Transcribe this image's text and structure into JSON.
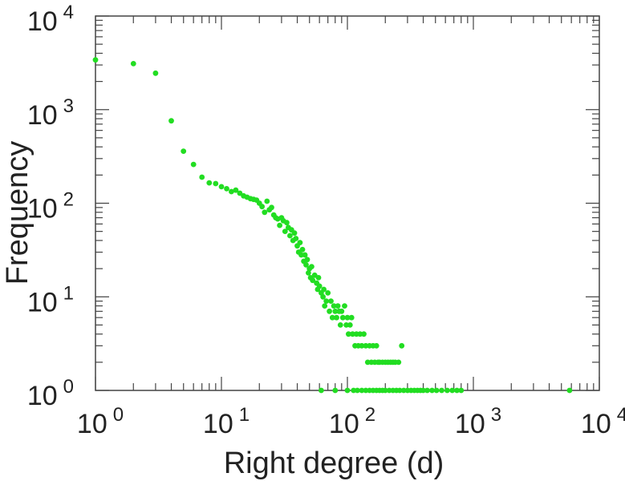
{
  "chart_data": {
    "type": "scatter",
    "title": "",
    "xlabel": "Right degree (d)",
    "ylabel": "Frequency",
    "xscale": "log",
    "yscale": "log",
    "xlim": [
      1,
      10000
    ],
    "ylim": [
      1,
      10000
    ],
    "grid": false,
    "legend": "none",
    "x_ticks": [
      {
        "base": "10",
        "exp": "0"
      },
      {
        "base": "10",
        "exp": "1"
      },
      {
        "base": "10",
        "exp": "2"
      },
      {
        "base": "10",
        "exp": "3"
      },
      {
        "base": "10",
        "exp": "4"
      }
    ],
    "y_ticks": [
      {
        "base": "10",
        "exp": "0"
      },
      {
        "base": "10",
        "exp": "1"
      },
      {
        "base": "10",
        "exp": "2"
      },
      {
        "base": "10",
        "exp": "3"
      },
      {
        "base": "10",
        "exp": "4"
      }
    ],
    "marker_color": "#22dd22",
    "axis_color": "#444444",
    "series": [
      {
        "points": [
          [
            1,
            3400
          ],
          [
            2,
            3100
          ],
          [
            3,
            2450
          ],
          [
            4,
            760
          ],
          [
            5,
            360
          ],
          [
            6,
            260
          ],
          [
            7,
            190
          ],
          [
            8,
            165
          ],
          [
            9,
            162
          ],
          [
            10,
            150
          ],
          [
            11,
            143
          ],
          [
            12,
            133
          ],
          [
            13,
            138
          ],
          [
            14,
            128
          ],
          [
            15,
            120
          ],
          [
            16,
            116
          ],
          [
            17,
            112
          ],
          [
            18,
            110
          ],
          [
            19,
            108
          ],
          [
            20,
            100
          ],
          [
            21,
            92
          ],
          [
            22,
            80
          ],
          [
            23,
            105
          ],
          [
            24,
            85
          ],
          [
            25,
            90
          ],
          [
            26,
            75
          ],
          [
            27,
            70
          ],
          [
            28,
            68
          ],
          [
            29,
            58
          ],
          [
            30,
            70
          ],
          [
            31,
            65
          ],
          [
            32,
            50
          ],
          [
            33,
            62
          ],
          [
            34,
            55
          ],
          [
            35,
            45
          ],
          [
            36,
            52
          ],
          [
            37,
            40
          ],
          [
            38,
            48
          ],
          [
            39,
            42
          ],
          [
            40,
            35
          ],
          [
            41,
            30
          ],
          [
            42,
            38
          ],
          [
            43,
            28
          ],
          [
            44,
            32
          ],
          [
            45,
            24
          ],
          [
            46,
            28
          ],
          [
            47,
            22
          ],
          [
            48,
            25
          ],
          [
            49,
            18
          ],
          [
            50,
            20
          ],
          [
            51,
            16
          ],
          [
            52,
            21
          ],
          [
            53,
            15
          ],
          [
            55,
            17
          ],
          [
            57,
            14
          ],
          [
            58,
            12
          ],
          [
            59,
            16
          ],
          [
            60,
            13
          ],
          [
            62,
            11
          ],
          [
            64,
            10
          ],
          [
            65,
            12
          ],
          [
            66,
            8
          ],
          [
            68,
            9
          ],
          [
            70,
            11
          ],
          [
            72,
            7
          ],
          [
            74,
            9
          ],
          [
            76,
            6
          ],
          [
            78,
            8
          ],
          [
            80,
            7
          ],
          [
            82,
            6
          ],
          [
            84,
            8
          ],
          [
            86,
            7
          ],
          [
            88,
            5
          ],
          [
            90,
            7
          ],
          [
            92,
            6
          ],
          [
            95,
            8
          ],
          [
            98,
            5
          ],
          [
            100,
            6
          ],
          [
            102,
            4
          ],
          [
            105,
            5
          ],
          [
            108,
            6
          ],
          [
            110,
            4
          ],
          [
            115,
            3
          ],
          [
            118,
            4
          ],
          [
            122,
            3
          ],
          [
            126,
            4
          ],
          [
            130,
            3
          ],
          [
            135,
            4
          ],
          [
            140,
            3
          ],
          [
            145,
            2
          ],
          [
            150,
            3
          ],
          [
            155,
            2
          ],
          [
            160,
            3
          ],
          [
            165,
            2
          ],
          [
            170,
            3
          ],
          [
            175,
            2
          ],
          [
            180,
            2
          ],
          [
            190,
            2
          ],
          [
            200,
            2
          ],
          [
            210,
            2
          ],
          [
            220,
            2
          ],
          [
            230,
            2
          ],
          [
            240,
            2
          ],
          [
            255,
            2
          ],
          [
            270,
            3
          ],
          [
            62,
            1
          ],
          [
            80,
            1
          ],
          [
            100,
            1
          ],
          [
            112,
            1
          ],
          [
            120,
            1
          ],
          [
            130,
            1
          ],
          [
            140,
            1
          ],
          [
            150,
            1
          ],
          [
            160,
            1
          ],
          [
            170,
            1
          ],
          [
            180,
            1
          ],
          [
            190,
            1
          ],
          [
            200,
            1
          ],
          [
            215,
            1
          ],
          [
            230,
            1
          ],
          [
            245,
            1
          ],
          [
            260,
            1
          ],
          [
            280,
            1
          ],
          [
            300,
            1
          ],
          [
            320,
            1
          ],
          [
            340,
            1
          ],
          [
            360,
            1
          ],
          [
            380,
            1
          ],
          [
            400,
            1
          ],
          [
            430,
            1
          ],
          [
            470,
            1
          ],
          [
            510,
            1
          ],
          [
            560,
            1
          ],
          [
            620,
            1
          ],
          [
            680,
            1
          ],
          [
            740,
            1
          ],
          [
            800,
            1
          ],
          [
            5800,
            1
          ]
        ]
      }
    ]
  }
}
